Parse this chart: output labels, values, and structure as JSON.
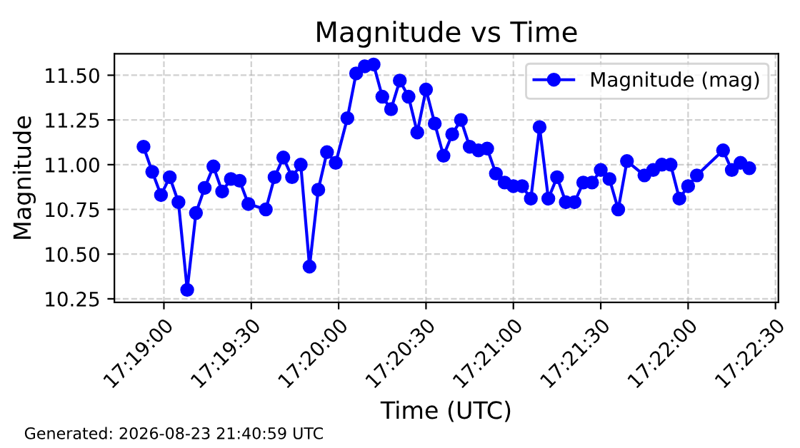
{
  "chart_data": {
    "type": "line",
    "title": "Magnitude vs Time",
    "xlabel": "Time (UTC)",
    "ylabel": "Magnitude",
    "x": [
      "2026-08-23T17:18:53",
      "2026-08-23T17:18:56",
      "2026-08-23T17:18:59",
      "2026-08-23T17:19:02",
      "2026-08-23T17:19:05",
      "2026-08-23T17:19:08",
      "2026-08-23T17:19:11",
      "2026-08-23T17:19:14",
      "2026-08-23T17:19:17",
      "2026-08-23T17:19:20",
      "2026-08-23T17:19:23",
      "2026-08-23T17:19:26",
      "2026-08-23T17:19:29",
      "2026-08-23T17:19:35",
      "2026-08-23T17:19:38",
      "2026-08-23T17:19:41",
      "2026-08-23T17:19:44",
      "2026-08-23T17:19:47",
      "2026-08-23T17:19:50",
      "2026-08-23T17:19:53",
      "2026-08-23T17:19:56",
      "2026-08-23T17:19:59",
      "2026-08-23T17:20:03",
      "2026-08-23T17:20:06",
      "2026-08-23T17:20:09",
      "2026-08-23T17:20:12",
      "2026-08-23T17:20:15",
      "2026-08-23T17:20:18",
      "2026-08-23T17:20:21",
      "2026-08-23T17:20:24",
      "2026-08-23T17:20:27",
      "2026-08-23T17:20:30",
      "2026-08-23T17:20:33",
      "2026-08-23T17:20:36",
      "2026-08-23T17:20:39",
      "2026-08-23T17:20:42",
      "2026-08-23T17:20:45",
      "2026-08-23T17:20:48",
      "2026-08-23T17:20:51",
      "2026-08-23T17:20:54",
      "2026-08-23T17:20:57",
      "2026-08-23T17:21:00",
      "2026-08-23T17:21:03",
      "2026-08-23T17:21:06",
      "2026-08-23T17:21:09",
      "2026-08-23T17:21:12",
      "2026-08-23T17:21:15",
      "2026-08-23T17:21:18",
      "2026-08-23T17:21:21",
      "2026-08-23T17:21:24",
      "2026-08-23T17:21:27",
      "2026-08-23T17:21:30",
      "2026-08-23T17:21:33",
      "2026-08-23T17:21:36",
      "2026-08-23T17:21:39",
      "2026-08-23T17:21:45",
      "2026-08-23T17:21:48",
      "2026-08-23T17:21:51",
      "2026-08-23T17:21:54",
      "2026-08-23T17:21:57",
      "2026-08-23T17:22:00",
      "2026-08-23T17:22:03",
      "2026-08-23T17:22:12",
      "2026-08-23T17:22:15",
      "2026-08-23T17:22:18",
      "2026-08-23T17:22:21"
    ],
    "series": [
      {
        "name": "Magnitude (mag)",
        "color": "#0000ff",
        "values": [
          11.1,
          10.96,
          10.83,
          10.93,
          10.79,
          10.3,
          10.73,
          10.87,
          10.99,
          10.85,
          10.92,
          10.91,
          10.78,
          10.75,
          10.93,
          11.04,
          10.93,
          11.0,
          10.43,
          10.86,
          11.07,
          11.01,
          11.26,
          11.51,
          11.55,
          11.56,
          11.38,
          11.31,
          11.47,
          11.38,
          11.18,
          11.42,
          11.23,
          11.05,
          11.17,
          11.25,
          11.1,
          11.08,
          11.09,
          10.95,
          10.9,
          10.88,
          10.88,
          10.81,
          11.21,
          10.81,
          10.93,
          10.79,
          10.79,
          10.9,
          10.9,
          10.97,
          10.92,
          10.75,
          11.02,
          10.94,
          10.97,
          11.0,
          11.0,
          10.81,
          10.88,
          10.94,
          11.08,
          10.97,
          11.01,
          10.98
        ]
      }
    ],
    "xlim": [
      "2026-08-23T17:18:43",
      "2026-08-23T17:22:31"
    ],
    "xticks": [
      {
        "value": "2026-08-23T17:19:00",
        "label": "17:19:00"
      },
      {
        "value": "2026-08-23T17:19:30",
        "label": "17:19:30"
      },
      {
        "value": "2026-08-23T17:20:00",
        "label": "17:20:00"
      },
      {
        "value": "2026-08-23T17:20:30",
        "label": "17:20:30"
      },
      {
        "value": "2026-08-23T17:21:00",
        "label": "17:21:00"
      },
      {
        "value": "2026-08-23T17:21:30",
        "label": "17:21:30"
      },
      {
        "value": "2026-08-23T17:22:00",
        "label": "17:22:00"
      },
      {
        "value": "2026-08-23T17:22:30",
        "label": "17:22:30"
      }
    ],
    "ylim": [
      10.23,
      11.62
    ],
    "yticks": [
      {
        "value": 10.25,
        "label": "10.25"
      },
      {
        "value": 10.5,
        "label": "10.50"
      },
      {
        "value": 10.75,
        "label": "10.75"
      },
      {
        "value": 11.0,
        "label": "11.00"
      },
      {
        "value": 11.25,
        "label": "11.25"
      },
      {
        "value": 11.5,
        "label": "11.50"
      }
    ],
    "grid": true,
    "legend": "top right",
    "marker": "circle",
    "line_style": "solid",
    "annotations": [
      "Generated: 2026-08-23 21:40:59 UTC"
    ]
  }
}
